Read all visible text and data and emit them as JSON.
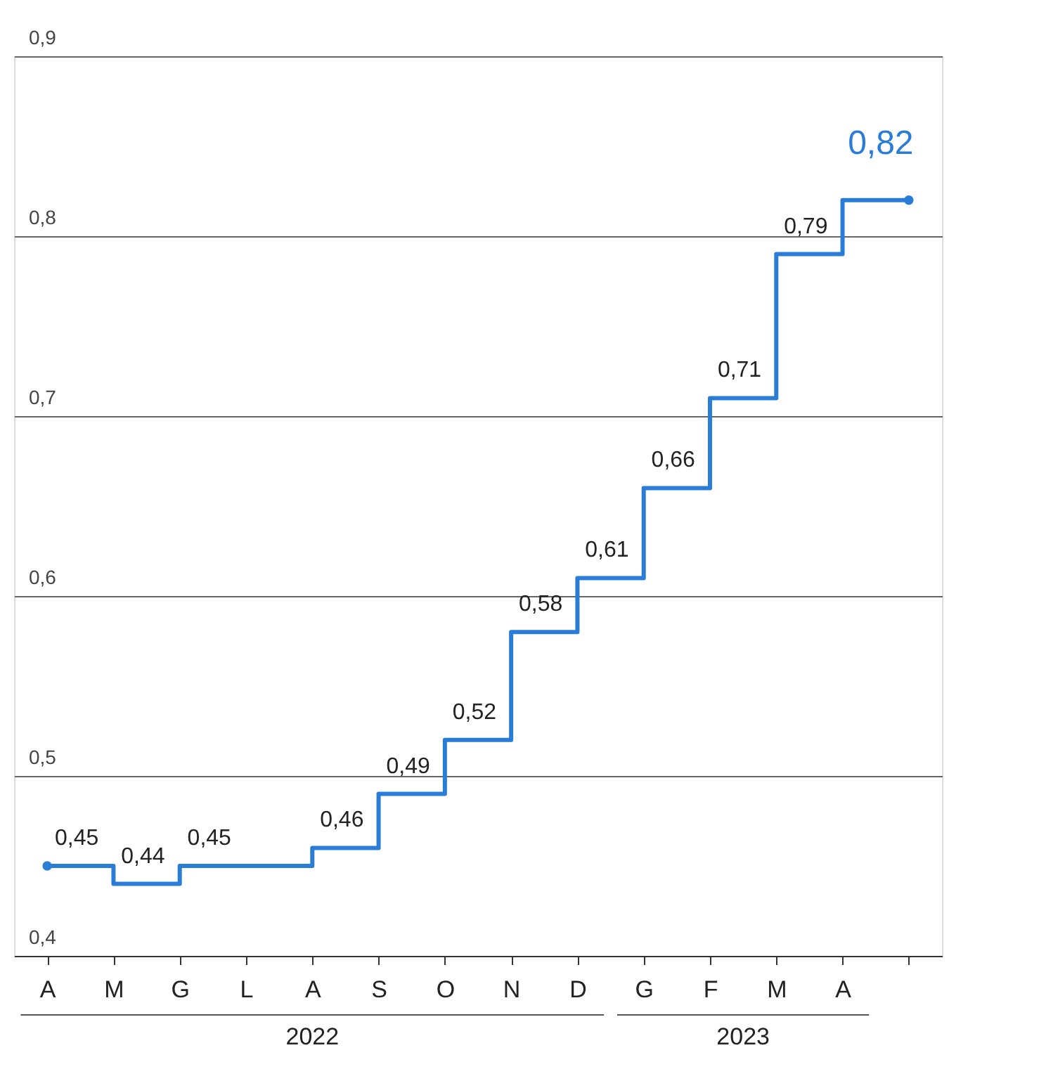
{
  "chart_data": {
    "type": "step",
    "categories": [
      "A",
      "M",
      "G",
      "L",
      "A",
      "S",
      "O",
      "N",
      "D",
      "G",
      "F",
      "M",
      "A",
      null
    ],
    "series": [
      {
        "color": "#2a7dd6",
        "values": [
          0.45,
          0.44,
          0.45,
          0.45,
          0.46,
          0.49,
          0.52,
          0.58,
          0.61,
          0.66,
          0.71,
          0.79,
          0.82,
          0.82
        ],
        "value_labels": [
          "0,45",
          "0,44",
          "0,45",
          null,
          "0,46",
          "0,49",
          "0,52",
          "0,58",
          "0,61",
          "0,66",
          "0,71",
          "0,79",
          null,
          "0,82"
        ]
      }
    ],
    "ylim": [
      0.4,
      0.9
    ],
    "yticks": [
      {
        "value": 0.4,
        "label": "0,4"
      },
      {
        "value": 0.5,
        "label": "0,5"
      },
      {
        "value": 0.6,
        "label": "0,6"
      },
      {
        "value": 0.7,
        "label": "0,7"
      },
      {
        "value": 0.8,
        "label": "0,8"
      },
      {
        "value": 0.9,
        "label": "0,9"
      }
    ],
    "grid": "y",
    "annotations": [
      "2022",
      "2023"
    ]
  }
}
